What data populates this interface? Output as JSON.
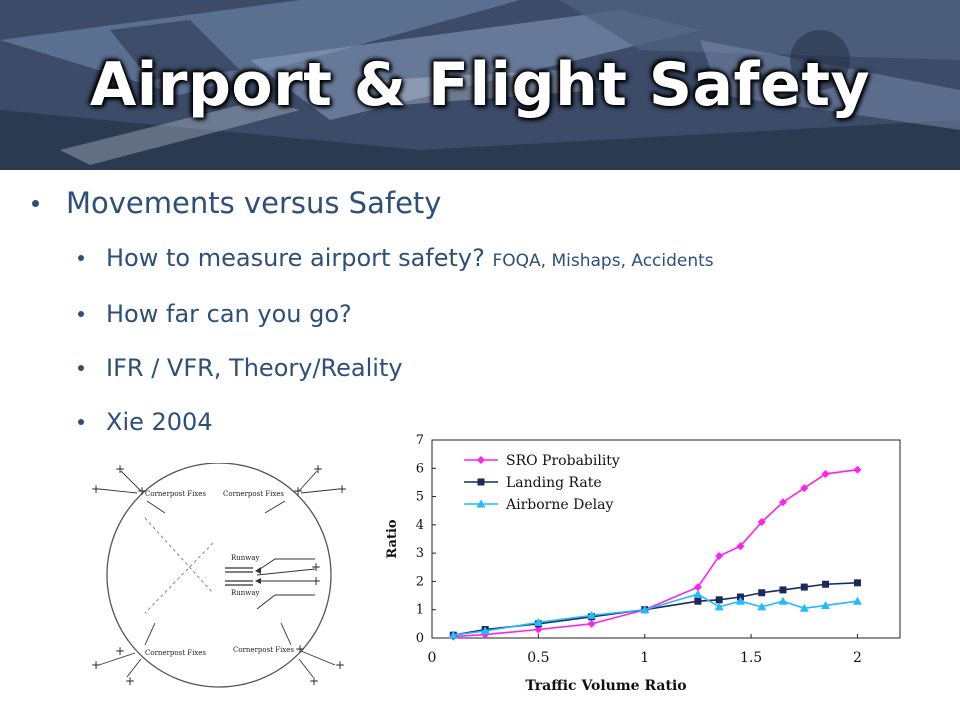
{
  "slide": {
    "title": "Airport & Flight Safety",
    "bullets": [
      {
        "text": "Movements versus Safety",
        "level": 1
      },
      {
        "text": "How to measure airport safety?",
        "small": "FOQA, Mishaps, Accidents",
        "level": 2
      },
      {
        "text": "How far can you go?",
        "level": 2
      },
      {
        "text": "IFR / VFR,  Theory/Reality",
        "level": 2
      },
      {
        "text": "Xie 2004",
        "level": 2
      }
    ],
    "colors": {
      "title": "#ffffff",
      "body_text": "#2e4f78",
      "banner": "#3a4a66"
    }
  },
  "diagram": {
    "labels": {
      "fix_tl": "Cornerpost Fixes",
      "fix_tr": "Cornerpost Fixes",
      "fix_bl": "Cornerpost Fixes",
      "fix_br": "Cornerpost Fixes",
      "runway_top": "Runway",
      "runway_bottom": "Runway"
    }
  },
  "chart_data": {
    "type": "line",
    "xlabel": "Traffic Volume Ratio",
    "ylabel": "Ratio",
    "xlim": [
      0,
      2.2
    ],
    "ylim": [
      0,
      7
    ],
    "xticks": [
      "0",
      "0.5",
      "1",
      "1.5",
      "2"
    ],
    "yticks": [
      "0",
      "1",
      "2",
      "3",
      "4",
      "5",
      "6",
      "7"
    ],
    "legend_position": "top-left",
    "grid": false,
    "series": [
      {
        "name": "SRO Probability",
        "color": "#ff22ee",
        "marker": "diamond",
        "x": [
          0.1,
          0.25,
          0.5,
          0.75,
          1.0,
          1.25,
          1.35,
          1.45,
          1.55,
          1.65,
          1.75,
          1.85,
          2.0
        ],
        "y": [
          0.05,
          0.12,
          0.3,
          0.5,
          1.0,
          1.8,
          2.9,
          3.25,
          4.1,
          4.8,
          5.3,
          5.8,
          5.95
        ]
      },
      {
        "name": "Landing Rate",
        "color": "#1a2a5e",
        "marker": "square",
        "x": [
          0.1,
          0.25,
          0.5,
          0.75,
          1.0,
          1.25,
          1.35,
          1.45,
          1.55,
          1.65,
          1.75,
          1.85,
          2.0
        ],
        "y": [
          0.1,
          0.3,
          0.5,
          0.75,
          1.0,
          1.3,
          1.35,
          1.45,
          1.6,
          1.7,
          1.8,
          1.9,
          1.95
        ]
      },
      {
        "name": "Airborne Delay",
        "color": "#22bbff",
        "marker": "triangle",
        "x": [
          0.1,
          0.25,
          0.5,
          0.75,
          1.0,
          1.25,
          1.35,
          1.45,
          1.55,
          1.65,
          1.75,
          1.85,
          2.0
        ],
        "y": [
          0.1,
          0.25,
          0.55,
          0.8,
          1.0,
          1.55,
          1.1,
          1.3,
          1.1,
          1.3,
          1.05,
          1.15,
          1.3
        ]
      }
    ]
  }
}
